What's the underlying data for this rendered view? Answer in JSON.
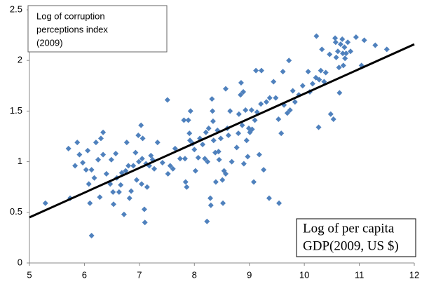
{
  "chart_data": {
    "type": "scatter",
    "ylabel_lines": [
      "Log of corruption",
      "perceptions index",
      "(2009)"
    ],
    "xlabel_lines": [
      "Log of per capita",
      "GDP(2009, US $)"
    ],
    "color": "#4f81bd",
    "xlim": [
      5,
      12
    ],
    "ylim": [
      0,
      2.5
    ],
    "xticks": [
      5,
      6,
      7,
      8,
      9,
      10,
      11,
      12
    ],
    "yticks": [
      0,
      0.5,
      1,
      1.5,
      2,
      2.5
    ],
    "x": [
      5.29,
      5.71,
      5.74,
      5.83,
      5.87,
      5.91,
      5.97,
      6.03,
      6.06,
      6.08,
      6.1,
      6.13,
      6.13,
      6.18,
      6.21,
      6.25,
      6.28,
      6.3,
      6.34,
      6.34,
      6.4,
      6.47,
      6.49,
      6.52,
      6.53,
      6.57,
      6.59,
      6.63,
      6.66,
      6.68,
      6.72,
      6.75,
      6.77,
      6.8,
      6.82,
      6.85,
      6.89,
      6.93,
      6.95,
      6.98,
      6.99,
      7.03,
      7.04,
      7.05,
      7.06,
      7.09,
      7.1,
      7.12,
      7.14,
      7.18,
      7.21,
      7.24,
      7.27,
      7.33,
      7.42,
      7.51,
      7.52,
      7.56,
      7.61,
      7.65,
      7.74,
      7.81,
      7.83,
      7.84,
      7.86,
      7.89,
      7.91,
      7.92,
      7.93,
      7.97,
      8.0,
      8.02,
      8.07,
      8.1,
      8.15,
      8.19,
      8.21,
      8.23,
      8.24,
      8.26,
      8.29,
      8.3,
      8.32,
      8.33,
      8.34,
      8.35,
      8.38,
      8.39,
      8.42,
      8.44,
      8.45,
      8.48,
      8.51,
      8.52,
      8.54,
      8.57,
      8.57,
      8.6,
      8.62,
      8.65,
      8.68,
      8.77,
      8.8,
      8.81,
      8.84,
      8.85,
      8.87,
      8.89,
      8.9,
      8.93,
      8.95,
      8.97,
      8.99,
      9.01,
      9.04,
      9.05,
      9.08,
      9.1,
      9.12,
      9.14,
      9.18,
      9.21,
      9.22,
      9.26,
      9.31,
      9.37,
      9.36,
      9.44,
      9.48,
      9.53,
      9.54,
      9.58,
      9.61,
      9.63,
      9.69,
      9.72,
      9.74,
      9.79,
      9.83,
      9.9,
      9.97,
      10.07,
      10.1,
      10.15,
      10.21,
      10.22,
      10.26,
      10.27,
      10.3,
      10.32,
      10.36,
      10.39,
      10.46,
      10.48,
      10.53,
      10.56,
      10.57,
      10.58,
      10.61,
      10.63,
      10.64,
      10.66,
      10.69,
      10.7,
      10.71,
      10.73,
      10.74,
      10.76,
      10.79,
      10.84,
      10.94,
      11.04,
      11.09,
      11.29,
      11.5
    ],
    "values": [
      0.59,
      1.13,
      0.64,
      0.96,
      1.19,
      1.07,
      0.99,
      0.92,
      1.11,
      0.78,
      0.59,
      0.92,
      0.27,
      0.84,
      1.19,
      1.02,
      0.65,
      1.23,
      1.29,
      1.07,
      0.88,
      0.78,
      1.02,
      0.7,
      0.58,
      1.08,
      0.84,
      0.7,
      0.77,
      0.89,
      0.48,
      0.91,
      1.19,
      0.96,
      0.64,
      0.71,
      0.96,
      1.09,
      0.82,
      1.26,
      1.0,
      1.36,
      0.78,
      1.03,
      1.23,
      0.53,
      0.4,
      0.98,
      0.75,
      0.96,
      1.06,
      1.02,
      0.93,
      1.19,
      0.99,
      1.61,
      0.88,
      0.96,
      0.93,
      1.13,
      1.03,
      1.41,
      1.03,
      0.8,
      0.75,
      1.41,
      1.28,
      1.21,
      1.5,
      1.18,
      1.12,
      0.91,
      1.04,
      1.23,
      1.17,
      1.03,
      1.29,
      0.41,
      1.0,
      1.33,
      0.64,
      0.57,
      1.62,
      1.5,
      1.4,
      1.21,
      1.09,
      0.8,
      1.31,
      1.1,
      1.02,
      1.23,
      0.82,
      0.59,
      0.91,
      1.72,
      0.88,
      1.33,
      1.26,
      1.5,
      1.0,
      1.14,
      1.28,
      1.47,
      1.66,
      1.78,
      1.36,
      1.69,
      0.98,
      1.51,
      1.21,
      1.05,
      1.33,
      1.29,
      1.51,
      1.32,
      0.8,
      1.41,
      1.9,
      1.49,
      1.07,
      1.57,
      1.9,
      0.92,
      1.59,
      1.63,
      0.64,
      1.79,
      1.63,
      1.42,
      0.59,
      1.28,
      1.89,
      1.56,
      1.48,
      2.0,
      1.51,
      1.7,
      1.59,
      1.66,
      1.75,
      1.89,
      1.69,
      1.77,
      1.83,
      2.24,
      1.34,
      1.81,
      1.9,
      2.11,
      1.79,
      1.88,
      2.06,
      1.47,
      1.42,
      2.22,
      2.18,
      2.03,
      2.09,
      1.93,
      1.68,
      2.16,
      2.21,
      2.07,
      1.95,
      2.13,
      2.02,
      2.07,
      2.18,
      2.09,
      2.23,
      1.95,
      2.2,
      2.15,
      2.11
    ],
    "trendline": {
      "x": [
        5,
        12
      ],
      "values": [
        0.45,
        2.16
      ],
      "color": "#000000"
    }
  }
}
